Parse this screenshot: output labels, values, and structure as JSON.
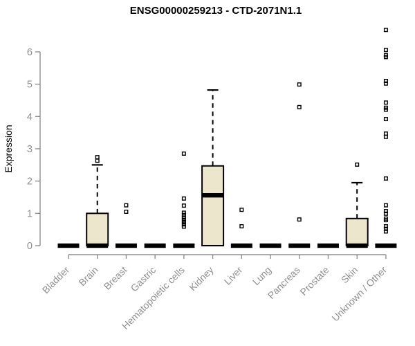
{
  "chart_data": {
    "type": "boxplot",
    "title": "ENSG00000259213 - CTD-2071N1.1",
    "ylabel": "Expression",
    "xlabel": "",
    "ylim": [
      0,
      6
    ],
    "yticks": [
      0,
      1,
      2,
      3,
      4,
      5,
      6
    ],
    "grid": false,
    "legend": null,
    "outlier_marker": "open-square",
    "categories": [
      "Bladder",
      "Brain",
      "Breast",
      "Gastric",
      "Hematopoietic cells",
      "Kidney",
      "Liver",
      "Lung",
      "Pancreas",
      "Prostate",
      "Skin",
      "Unknown / Other"
    ],
    "boxes": [
      {
        "category": "Bladder",
        "low": 0,
        "q1": 0,
        "median": 0,
        "q3": 0,
        "high": 0,
        "outliers": []
      },
      {
        "category": "Brain",
        "low": 0,
        "q1": 0,
        "median": 0,
        "q3": 1.0,
        "high": 2.5,
        "outliers": [
          2.63,
          2.74
        ]
      },
      {
        "category": "Breast",
        "low": 0,
        "q1": 0,
        "median": 0,
        "q3": 0,
        "high": 0,
        "outliers": [
          1.05,
          1.25
        ]
      },
      {
        "category": "Gastric",
        "low": 0,
        "q1": 0,
        "median": 0,
        "q3": 0,
        "high": 0,
        "outliers": []
      },
      {
        "category": "Hematopoietic cells",
        "low": 0,
        "q1": 0,
        "median": 0,
        "q3": 0,
        "high": 0,
        "outliers": [
          2.85,
          1.46,
          1.24,
          1.02,
          0.95,
          0.87,
          0.8,
          0.73,
          0.66,
          0.59
        ]
      },
      {
        "category": "Kidney",
        "low": 0,
        "q1": 0,
        "median": 1.56,
        "q3": 2.47,
        "high": 4.82,
        "outliers": []
      },
      {
        "category": "Liver",
        "low": 0,
        "q1": 0,
        "median": 0,
        "q3": 0,
        "high": 0,
        "outliers": [
          1.11,
          0.6
        ]
      },
      {
        "category": "Lung",
        "low": 0,
        "q1": 0,
        "median": 0,
        "q3": 0,
        "high": 0,
        "outliers": []
      },
      {
        "category": "Pancreas",
        "low": 0,
        "q1": 0,
        "median": 0,
        "q3": 0,
        "high": 0,
        "outliers": [
          4.99,
          4.29,
          0.81
        ]
      },
      {
        "category": "Prostate",
        "low": 0,
        "q1": 0,
        "median": 0,
        "q3": 0,
        "high": 0,
        "outliers": []
      },
      {
        "category": "Skin",
        "low": 0,
        "q1": 0,
        "median": 0,
        "q3": 0.84,
        "high": 1.95,
        "outliers": [
          2.51
        ]
      },
      {
        "category": "Unknown / Other",
        "low": 0,
        "q1": 0,
        "median": 0,
        "q3": 0,
        "high": 0,
        "outliers": [
          6.68,
          6.06,
          5.9,
          5.84,
          5.1,
          5.02,
          4.43,
          4.27,
          4.21,
          3.92,
          3.47,
          3.37,
          2.08,
          1.25,
          1.07,
          0.99,
          0.84,
          0.79,
          0.6,
          0.52,
          0.44
        ]
      }
    ],
    "colors": {
      "box_fill": "#ece6cd",
      "box_border": "#000000",
      "median": "#000000",
      "whisker": "#000000",
      "outlier": "#000000",
      "axis": "#8f8f8f",
      "tick_label": "#8f8f8f",
      "title": "#000000",
      "background": "#ffffff"
    }
  }
}
